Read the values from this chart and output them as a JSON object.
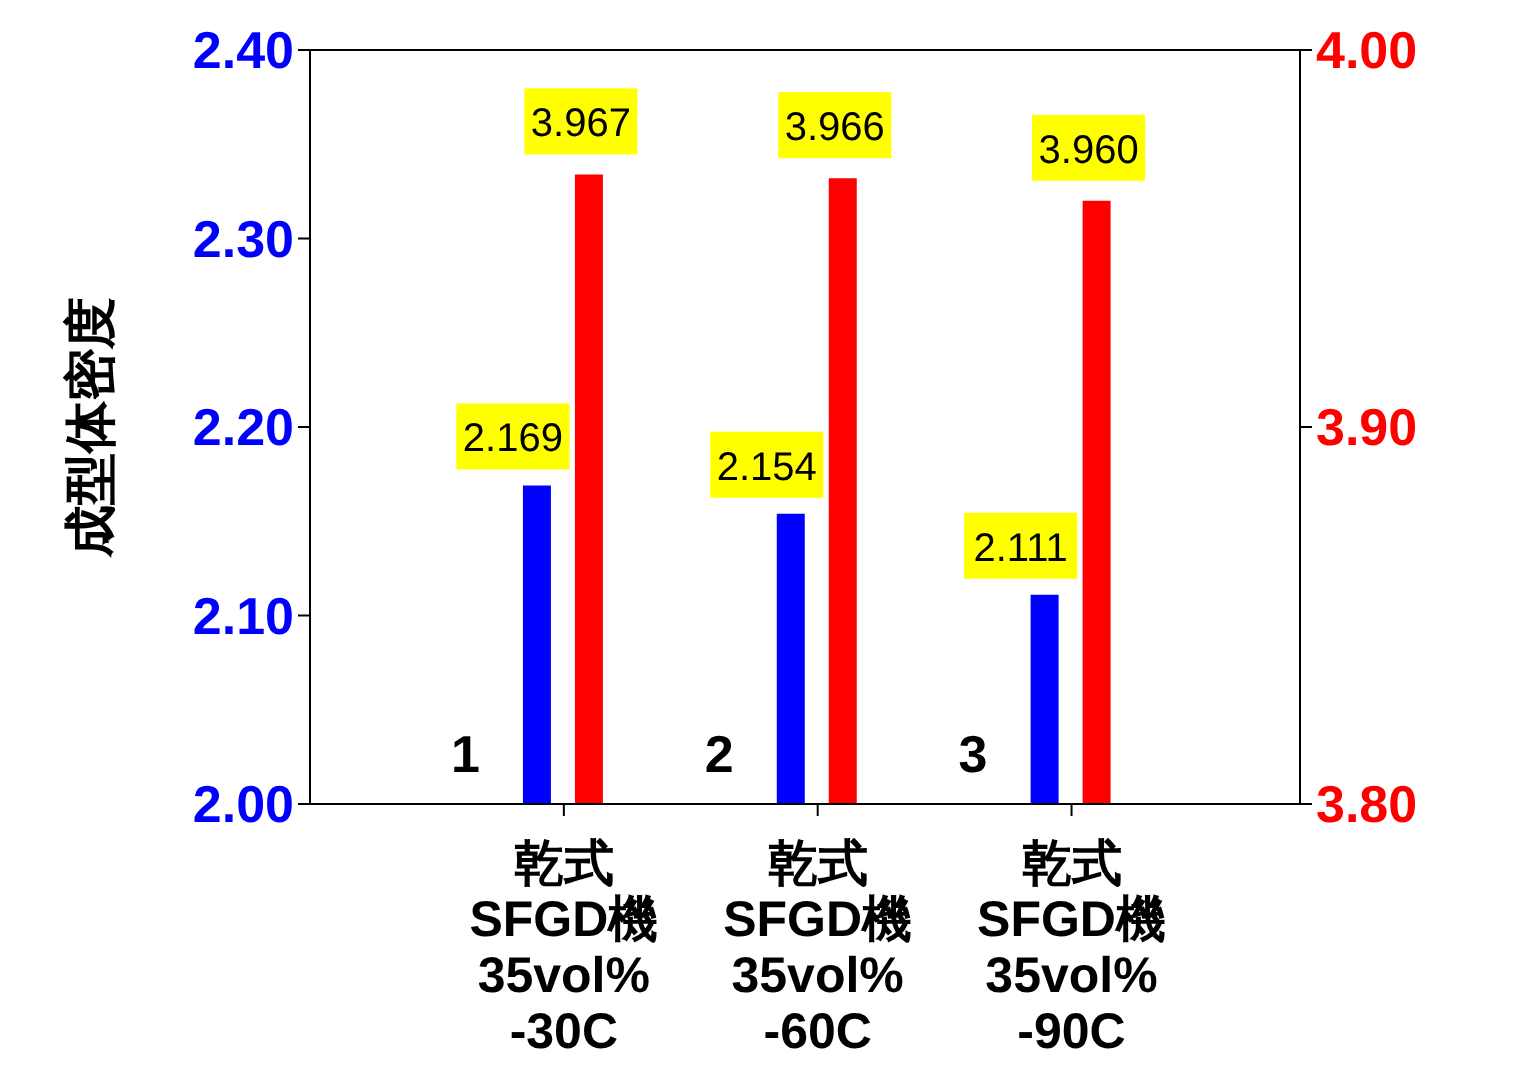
{
  "chart_data": {
    "type": "bar",
    "ylabel": "成型体密度",
    "categories": [
      "乾式\nSFGD機\n35vol%\n-30C",
      "乾式\nSFGD機\n35vol%\n-60C",
      "乾式\nSFGD機\n35vol%\n-90C"
    ],
    "series": [
      {
        "color": "#0000ff",
        "values": [
          2.169,
          2.154,
          2.111
        ],
        "value_labels": [
          "2.169",
          "2.154",
          "2.111"
        ]
      },
      {
        "color": "#ff0000",
        "values": [
          3.967,
          3.966,
          3.96
        ],
        "value_labels": [
          "3.967",
          "3.966",
          "3.960"
        ],
        "axis": "y2"
      }
    ],
    "ylim": [
      2.0,
      2.4
    ],
    "yticks": [
      {
        "value": 2.0,
        "label": "2.00"
      },
      {
        "value": 2.1,
        "label": "2.10"
      },
      {
        "value": 2.2,
        "label": "2.20"
      },
      {
        "value": 2.3,
        "label": "2.30"
      },
      {
        "value": 2.4,
        "label": "2.40"
      }
    ],
    "y2lim": [
      3.8,
      4.0
    ],
    "y2ticks": [
      {
        "value": 3.8,
        "label": "3.80"
      },
      {
        "value": 3.9,
        "label": "3.90"
      },
      {
        "value": 4.0,
        "label": "4.00"
      }
    ],
    "grid": false,
    "legend": false,
    "annotations": [
      "1",
      "2",
      "3"
    ]
  }
}
